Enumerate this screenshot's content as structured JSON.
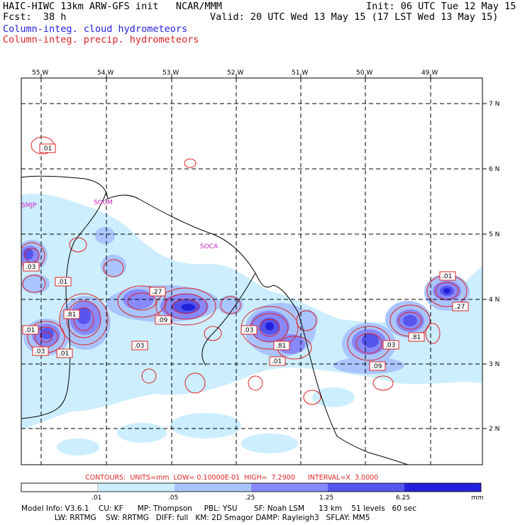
{
  "header": {
    "model": "HAIC-HIWC 13km ARW-GFS init   NCAR/MMM",
    "fcst": "Fcst:  38 h",
    "init": "Init: 06 UTC Tue 12 May 15",
    "valid": "Valid: 20 UTC Wed 13 May 15 (17 LST Wed 13 May 15)",
    "field_cloud": "Column-integ. cloud hydrometeors",
    "field_precip": "Column-integ. precip. hydrometeors"
  },
  "map": {
    "lon_labels": [
      "55 W",
      "54 W",
      "53 W",
      "52 W",
      "51 W",
      "50 W",
      "49 W"
    ],
    "lat_labels": [
      "7 N",
      "6 N",
      "5 N",
      "4 N",
      "3 N",
      "2 N"
    ],
    "stations": [
      "SMJP",
      "SOCM",
      "SOCA"
    ],
    "contour_labels": [
      ".01",
      ".03",
      ".01",
      ".81",
      ".27",
      ".09",
      ".03",
      ".01",
      ".03",
      ".81",
      ".01",
      ".03",
      ".09",
      ".81",
      ".01",
      ".27",
      ".01",
      ".03"
    ]
  },
  "contours_info": "CONTOURS:  UNITS=mm  LOW= 0.10000E-01  HIGH=  7.2900      INTERVAL=X  3.0000",
  "legend": {
    "ticks": [
      ".01",
      ".05",
      ".25",
      "1.25",
      "6.25"
    ],
    "units": "mm",
    "colors": [
      "#ffffff",
      "#cceeff",
      "#aac4ff",
      "#8888ff",
      "#5555ee",
      "#2222dd"
    ]
  },
  "footer": {
    "line1": "Model Info: V3.6.1    CU: KF      MP: Thompson     PBL: YSU       SF: Noah LSM      13 km    51 levels   60 sec",
    "line2": "              LW: RRTMG    SW: RRTMG   DIFF: full   KM: 2D Smagor DAMP: Rayleigh3   SFLAY: MM5"
  }
}
